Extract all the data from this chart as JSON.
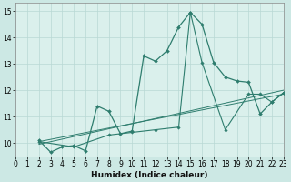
{
  "xlabel": "Humidex (Indice chaleur)",
  "bg_color": "#cce8e4",
  "plot_bg_color": "#daf0ec",
  "grid_color": "#b8d8d4",
  "line_color": "#2e7d6e",
  "xlim": [
    0,
    23
  ],
  "ylim": [
    9.5,
    15.3
  ],
  "yticks": [
    10,
    11,
    12,
    13,
    14,
    15
  ],
  "xticks": [
    0,
    1,
    2,
    3,
    4,
    5,
    6,
    7,
    8,
    9,
    10,
    11,
    12,
    13,
    14,
    15,
    16,
    17,
    18,
    19,
    20,
    21,
    22,
    23
  ],
  "lines": [
    {
      "x": [
        2,
        3,
        4,
        5,
        6,
        7,
        8,
        9,
        10,
        11,
        12,
        13,
        14,
        15,
        16,
        17,
        18,
        19,
        20,
        21,
        22,
        23
      ],
      "y": [
        10.1,
        9.65,
        9.85,
        9.9,
        9.7,
        11.4,
        11.2,
        10.35,
        10.45,
        13.3,
        13.1,
        13.5,
        14.4,
        14.95,
        14.5,
        13.05,
        12.5,
        12.35,
        12.3,
        11.1,
        11.55,
        11.9
      ],
      "lw": 0.9,
      "marker": "D",
      "ms": 2.0
    },
    {
      "x": [
        2,
        5,
        8,
        10,
        12,
        14,
        15,
        16,
        18,
        20,
        21,
        22,
        23
      ],
      "y": [
        10.05,
        9.85,
        10.3,
        10.4,
        10.5,
        10.6,
        14.95,
        13.05,
        10.5,
        11.85,
        11.85,
        11.55,
        11.9
      ],
      "lw": 0.8,
      "marker": "D",
      "ms": 1.8
    },
    {
      "x": [
        2,
        23
      ],
      "y": [
        9.95,
        12.0
      ],
      "lw": 0.7,
      "marker": null,
      "ms": 0
    },
    {
      "x": [
        2,
        23
      ],
      "y": [
        10.05,
        11.85
      ],
      "lw": 0.7,
      "marker": null,
      "ms": 0
    }
  ]
}
